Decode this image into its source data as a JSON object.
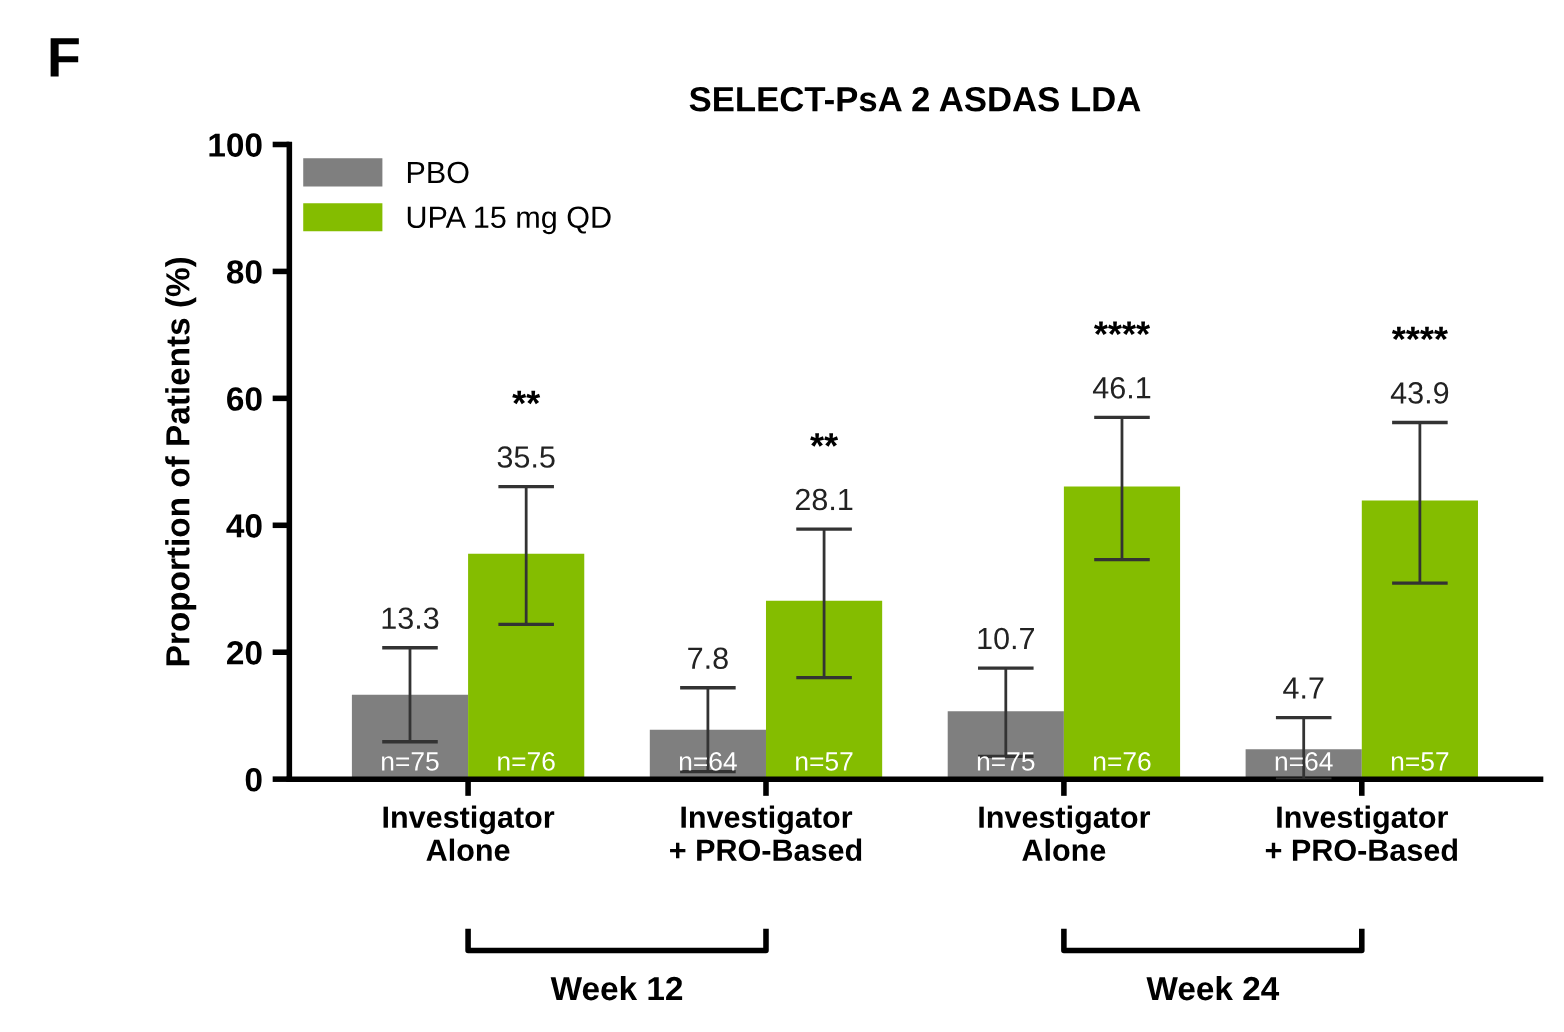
{
  "chart_data": {
    "type": "bar",
    "title": "SELECT-PsA 2 ASDAS LDA",
    "ylabel": "Proportion of Patients (%)",
    "categories": [
      "Investigator\nAlone",
      "Investigator\n+ PRO-Based",
      "Investigator\nAlone",
      "Investigator\n+ PRO-Based"
    ],
    "series": [
      {
        "name": "PBO",
        "color": "#7f7f7f",
        "values": [
          13.3,
          7.8,
          10.7,
          4.7
        ],
        "errors": [
          [
            5.9,
            20.7
          ],
          [
            1.2,
            14.4
          ],
          [
            3.6,
            17.5
          ],
          [
            0,
            9.7
          ]
        ]
      },
      {
        "name": "UPA 15 mg QD",
        "color": "#84bd00",
        "values": [
          35.5,
          28.1,
          46.1,
          43.9
        ],
        "errors": [
          [
            24.4,
            46.1
          ],
          [
            16.0,
            39.4
          ],
          [
            34.6,
            57.0
          ],
          [
            30.9,
            56.2
          ]
        ]
      }
    ],
    "data_labels": true,
    "ylim": [
      0,
      100
    ],
    "yticks": [
      0,
      20,
      40,
      60,
      80,
      100
    ],
    "grid": false,
    "legend": "top left",
    "annotations": [
      "F",
      "n=75",
      "n=64",
      "n=75",
      "n=64",
      "n=76",
      "n=57",
      "n=76",
      "n=57",
      "**",
      "**",
      "****",
      "****",
      "Week 12",
      "Week 24"
    ]
  }
}
